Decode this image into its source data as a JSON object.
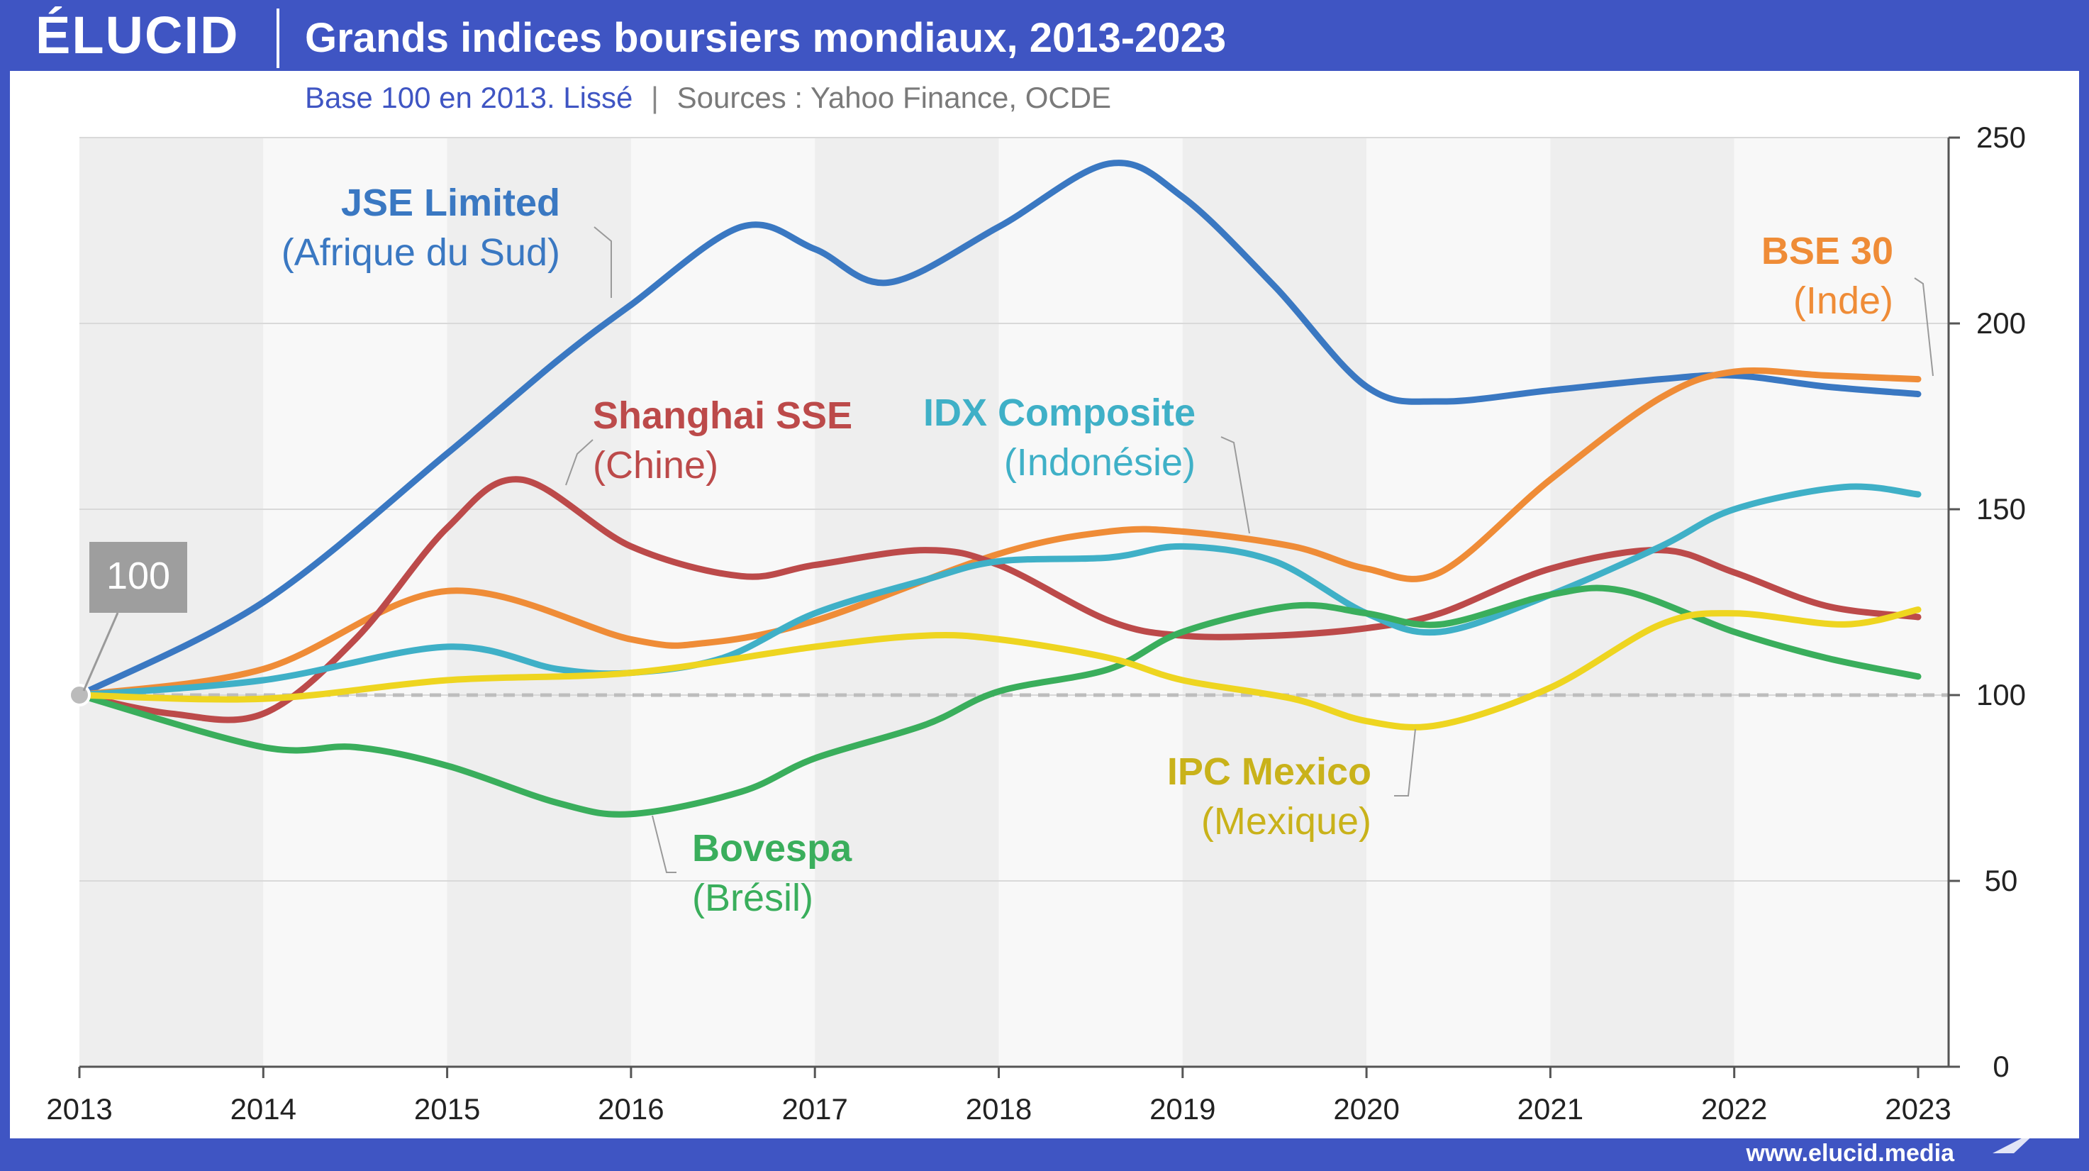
{
  "header": {
    "logo": "ÉLUCID",
    "title": "Grands indices boursiers mondiaux, 2013-2023",
    "subtitle_base": "Base 100 en 2013. Lissé",
    "subtitle_sep": "|",
    "subtitle_sources": "Sources : Yahoo Finance, OCDE"
  },
  "footer": {
    "website": "www.elucid.media"
  },
  "colors": {
    "brand_blue": "#3f55c3",
    "jse": "#3a78c2",
    "bse": "#ef8c37",
    "shanghai": "#bc4a4a",
    "idx": "#3fb0c7",
    "bovespa": "#3aae5c",
    "ipc": "#eed520",
    "ipc_label": "#c9b21a"
  },
  "chart_data": {
    "type": "line",
    "x": [
      2013,
      2014,
      2015,
      2016,
      2017,
      2018,
      2019,
      2020,
      2021,
      2022,
      2023
    ],
    "ylim": [
      0,
      250
    ],
    "yticks": [
      "0",
      "50",
      "100",
      "150",
      "200",
      "250"
    ],
    "xticks": [
      "2013",
      "2014",
      "2015",
      "2016",
      "2017",
      "2018",
      "2019",
      "2020",
      "2021",
      "2022",
      "2023"
    ],
    "y_axis_side": "right",
    "alternating_year_bands": true,
    "baseline": 100,
    "baseline_label": "100",
    "series": [
      {
        "name": "JSE Limited",
        "country": "(Afrique du Sud)",
        "color": "#3a78c2",
        "points": [
          [
            2013,
            100
          ],
          [
            2014,
            125
          ],
          [
            2015,
            165
          ],
          [
            2015.6,
            190
          ],
          [
            2016,
            205
          ],
          [
            2016.6,
            226
          ],
          [
            2017,
            220
          ],
          [
            2017.4,
            211
          ],
          [
            2018,
            226
          ],
          [
            2018.6,
            243
          ],
          [
            2019,
            234
          ],
          [
            2019.5,
            210
          ],
          [
            2020,
            183
          ],
          [
            2020.4,
            179
          ],
          [
            2021,
            182
          ],
          [
            2021.6,
            185
          ],
          [
            2022,
            186
          ],
          [
            2022.5,
            183
          ],
          [
            2023,
            181
          ]
        ]
      },
      {
        "name": "BSE 30",
        "country": "(Inde)",
        "color": "#ef8c37",
        "points": [
          [
            2013,
            100
          ],
          [
            2014,
            107
          ],
          [
            2015,
            128
          ],
          [
            2016,
            115
          ],
          [
            2016.4,
            114
          ],
          [
            2017,
            120
          ],
          [
            2018,
            138
          ],
          [
            2018.6,
            144
          ],
          [
            2019,
            144
          ],
          [
            2019.6,
            140
          ],
          [
            2020,
            134
          ],
          [
            2020.4,
            133
          ],
          [
            2021,
            158
          ],
          [
            2021.6,
            180
          ],
          [
            2022,
            187
          ],
          [
            2022.5,
            186
          ],
          [
            2023,
            185
          ]
        ]
      },
      {
        "name": "Shanghai SSE",
        "country": "(Chine)",
        "color": "#bc4a4a",
        "points": [
          [
            2013,
            100
          ],
          [
            2013.5,
            95
          ],
          [
            2014,
            95
          ],
          [
            2014.5,
            115
          ],
          [
            2015,
            145
          ],
          [
            2015.4,
            158
          ],
          [
            2016,
            140
          ],
          [
            2016.6,
            132
          ],
          [
            2017,
            135
          ],
          [
            2017.6,
            139
          ],
          [
            2018,
            135
          ],
          [
            2018.6,
            120
          ],
          [
            2019,
            116
          ],
          [
            2019.5,
            116
          ],
          [
            2020,
            118
          ],
          [
            2020.4,
            122
          ],
          [
            2021,
            134
          ],
          [
            2021.6,
            139
          ],
          [
            2022,
            133
          ],
          [
            2022.5,
            124
          ],
          [
            2023,
            121
          ]
        ]
      },
      {
        "name": "IDX Composite",
        "country": "(Indonésie)",
        "color": "#3fb0c7",
        "points": [
          [
            2013,
            100
          ],
          [
            2014,
            104
          ],
          [
            2015,
            113
          ],
          [
            2015.6,
            107
          ],
          [
            2016,
            106
          ],
          [
            2016.5,
            110
          ],
          [
            2017,
            122
          ],
          [
            2017.6,
            131
          ],
          [
            2018,
            136
          ],
          [
            2018.6,
            137
          ],
          [
            2019,
            140
          ],
          [
            2019.5,
            136
          ],
          [
            2020,
            122
          ],
          [
            2020.4,
            117
          ],
          [
            2021,
            127
          ],
          [
            2021.6,
            140
          ],
          [
            2022,
            150
          ],
          [
            2022.6,
            156
          ],
          [
            2023,
            154
          ]
        ]
      },
      {
        "name": "Bovespa",
        "country": "(Brésil)",
        "color": "#3aae5c",
        "points": [
          [
            2013,
            100
          ],
          [
            2014,
            86
          ],
          [
            2014.5,
            86
          ],
          [
            2015,
            81
          ],
          [
            2015.6,
            71
          ],
          [
            2016,
            68
          ],
          [
            2016.6,
            74
          ],
          [
            2017,
            83
          ],
          [
            2017.6,
            92
          ],
          [
            2018,
            101
          ],
          [
            2018.6,
            107
          ],
          [
            2019,
            117
          ],
          [
            2019.6,
            124
          ],
          [
            2020,
            122
          ],
          [
            2020.4,
            119
          ],
          [
            2021,
            127
          ],
          [
            2021.4,
            128
          ],
          [
            2022,
            117
          ],
          [
            2022.5,
            110
          ],
          [
            2023,
            105
          ]
        ]
      },
      {
        "name": "IPC Mexico",
        "country": "(Mexique)",
        "color": "#eed520",
        "points": [
          [
            2013,
            100
          ],
          [
            2014,
            99
          ],
          [
            2015,
            104
          ],
          [
            2016,
            106
          ],
          [
            2017,
            113
          ],
          [
            2017.6,
            116
          ],
          [
            2018,
            115
          ],
          [
            2018.6,
            110
          ],
          [
            2019,
            104
          ],
          [
            2019.6,
            99
          ],
          [
            2020,
            93
          ],
          [
            2020.4,
            92
          ],
          [
            2021,
            102
          ],
          [
            2021.6,
            119
          ],
          [
            2022,
            122
          ],
          [
            2022.6,
            119
          ],
          [
            2023,
            123
          ]
        ]
      }
    ]
  }
}
